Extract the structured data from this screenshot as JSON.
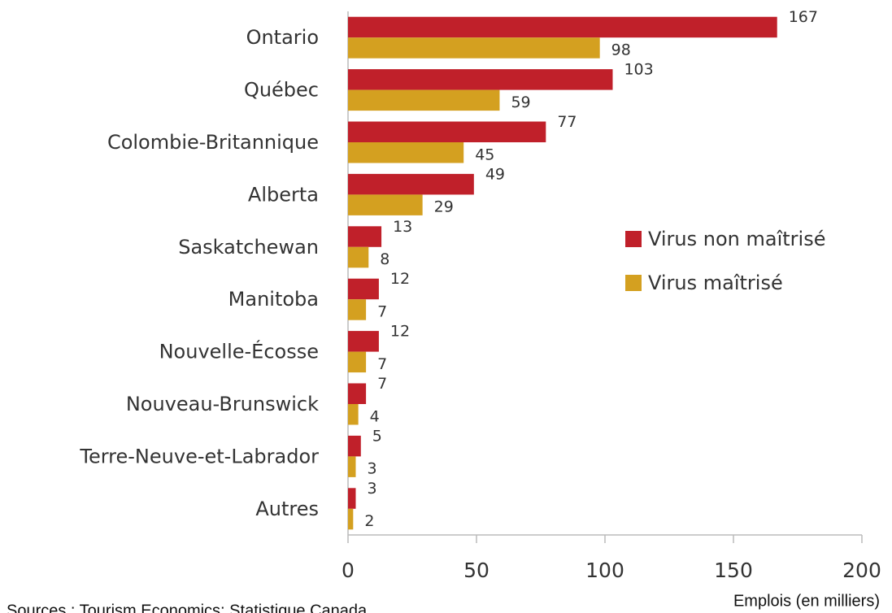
{
  "chart_data": {
    "type": "bar",
    "orientation": "horizontal",
    "categories": [
      "Ontario",
      "Québec",
      "Colombie-Britannique",
      "Alberta",
      "Saskatchewan",
      "Manitoba",
      "Nouvelle-Écosse",
      "Nouveau-Brunswick",
      "Terre-Neuve-et-Labrador",
      "Autres"
    ],
    "series": [
      {
        "name": "Virus non maîtrisé",
        "color": "#c0202a",
        "values": [
          167,
          103,
          77,
          49,
          13,
          12,
          12,
          7,
          5,
          3
        ]
      },
      {
        "name": "Virus maîtrisé",
        "color": "#d4a020",
        "values": [
          98,
          59,
          45,
          29,
          8,
          7,
          7,
          4,
          3,
          2
        ]
      }
    ],
    "xlim": [
      0,
      200
    ],
    "xticks": [
      0,
      50,
      100,
      150,
      200
    ],
    "x_label": "Emplois (en milliers)",
    "source": "Sources : Tourism Economics; Statistique Canada",
    "legend": "right",
    "grid": false
  }
}
